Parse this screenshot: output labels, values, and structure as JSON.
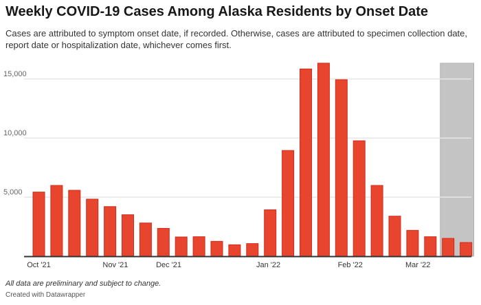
{
  "chart_data": {
    "type": "bar",
    "title": "Weekly COVID-19 Cases Among Alaska Residents by Onset Date",
    "subtitle": "Cases are attributed to symptom onset date, if recorded. Otherwise, cases are attributed to specimen collection date, report date or hospitalization date, whichever comes first.",
    "xlabel": "",
    "ylabel": "",
    "ylim": [
      0,
      16500
    ],
    "yticks": [
      {
        "value": 5000,
        "label": "5,000"
      },
      {
        "value": 10000,
        "label": "10,000"
      },
      {
        "value": 15000,
        "label": "15,000"
      }
    ],
    "xticks": [
      {
        "index": 0,
        "label": "Oct '21"
      },
      {
        "index": 4.3,
        "label": "Nov '21"
      },
      {
        "index": 7.3,
        "label": "Dec '21"
      },
      {
        "index": 12.9,
        "label": "Jan '22"
      },
      {
        "index": 17.5,
        "label": "Feb '22"
      },
      {
        "index": 21.3,
        "label": "Mar '22"
      }
    ],
    "values": [
      5430,
      5990,
      5580,
      4830,
      4200,
      3510,
      2810,
      2360,
      1630,
      1650,
      1260,
      970,
      1070,
      3930,
      8950,
      15850,
      16340,
      14940,
      9770,
      5990,
      3390,
      2190,
      1650,
      1510,
      1160
    ],
    "shaded_range": {
      "from_index": 23,
      "to_index": 24,
      "note": "preliminary"
    },
    "grid": true,
    "colors": {
      "bar": "#e8452f",
      "bar_edge": "#d42a1a",
      "shade": "#c4c4c4",
      "grid": "#e6e6e6",
      "axis": "#333333"
    }
  },
  "footer": {
    "note": "All data are preliminary and subject to change.",
    "credit": "Created with Datawrapper"
  }
}
